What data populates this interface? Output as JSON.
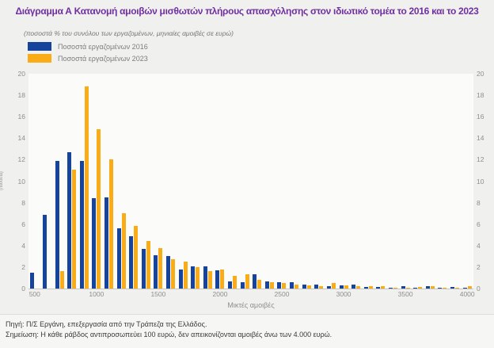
{
  "header": {
    "title": "Διάγραμμα Α Κατανομή αμοιβών μισθωτών πλήρους απασχόλησης στον ιδιωτικό τομέα το 2016 και το 2023",
    "subtitle": "(ποσοστά % του συνόλου των εργαζομένων, μηνιαίες αμοιβές σε ευρώ)"
  },
  "legend": {
    "items": [
      {
        "label": "Ποσοστά εργαζομένων 2016",
        "color": "#16439c"
      },
      {
        "label": "Ποσοστά εργαζομένων 2023",
        "color": "#f9ac15"
      }
    ]
  },
  "chart_data": {
    "type": "bar",
    "title": "Διάγραμμα Α Κατανομή αμοιβών μισθωτών πλήρους απασχόλησης στον ιδιωτικό τομέα το 2016 και το 2023",
    "subtitle": "(ποσοστά % του συνόλου των εργαζομένων, μηνιαίες αμοιβές σε ευρώ)",
    "categories": [
      500,
      600,
      700,
      800,
      900,
      1000,
      1100,
      1200,
      1300,
      1400,
      1500,
      1600,
      1700,
      1800,
      1900,
      2000,
      2100,
      2200,
      2300,
      2400,
      2500,
      2600,
      2700,
      2800,
      2900,
      3000,
      3100,
      3200,
      3300,
      3400,
      3500,
      3600,
      3700,
      3800,
      3900,
      4000
    ],
    "series": [
      {
        "name": "Ποσοστά εργαζομένων 2016",
        "year": "2016",
        "color": "#16439c",
        "values": [
          1.5,
          6.9,
          11.9,
          12.7,
          11.9,
          8.4,
          8.5,
          5.6,
          4.9,
          3.7,
          3.1,
          3.0,
          1.8,
          2.1,
          2.1,
          1.7,
          0.7,
          0.6,
          1.3,
          0.7,
          0.6,
          0.6,
          0.4,
          0.4,
          0.2,
          0.3,
          0.4,
          0.15,
          0.15,
          0.1,
          0.2,
          0.1,
          0.2,
          0.1,
          0.15,
          0.1
        ]
      },
      {
        "name": "Ποσοστά εργαζομένων 2023",
        "year": "2023",
        "color": "#f9ac15",
        "values": [
          0,
          0,
          1.6,
          11.1,
          18.8,
          14.8,
          12.0,
          7.0,
          5.8,
          4.4,
          3.8,
          2.7,
          2.5,
          2.0,
          1.6,
          1.8,
          1.2,
          1.3,
          0.8,
          0.6,
          0.5,
          0.4,
          0.3,
          0.2,
          0.5,
          0.3,
          0.2,
          0.2,
          0.2,
          0.1,
          0.1,
          0.15,
          0.25,
          0.1,
          0.1,
          0.2
        ]
      }
    ],
    "ylim": [
      0,
      20
    ],
    "y_ticks": [
      0,
      2,
      4,
      6,
      8,
      10,
      12,
      14,
      16,
      18,
      20
    ],
    "x_tick_step": 500,
    "xlabel": "Μικτές αμοιβές",
    "ylabel": "(ποσοστά)",
    "grid": false,
    "legend_position": "top-left"
  },
  "footer": {
    "source": "Πηγή: Π/Σ Εργάνη, επεξεργασία από την Τράπεζα της Ελλάδος.",
    "note": "Σημείωση: Η κάθε ράβδος αντιπροσωπεύει 100 ευρώ, δεν απεικονίζονται αμοιβές άνω των 4.000 ευρώ."
  }
}
